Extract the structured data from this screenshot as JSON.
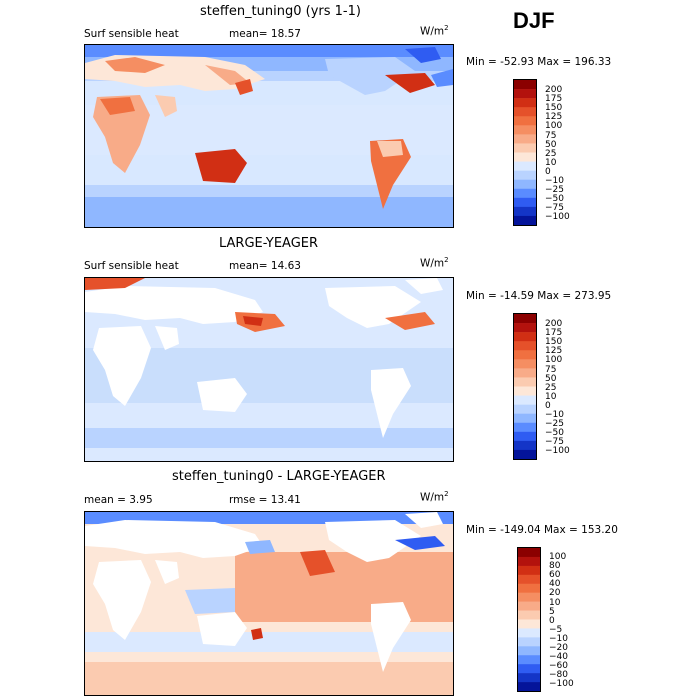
{
  "season": "DJF",
  "panels": [
    {
      "title": "steffen_tuning0 (yrs 1-1)",
      "left_text": "Surf sensible heat",
      "stat_text": "mean=  18.57",
      "units": "W/m",
      "minmax": "Min = -52.93 Max = 196.33",
      "colorbar_labels": [
        "200",
        "175",
        "150",
        "125",
        "100",
        "75",
        "50",
        "25",
        "10",
        "0",
        "−10",
        "−25",
        "−50",
        "−75",
        "−100"
      ],
      "colorbar_colors": [
        "#8b0000",
        "#b3120d",
        "#d12f14",
        "#e5512a",
        "#f07040",
        "#f58e62",
        "#f8ab88",
        "#fbcbb0",
        "#fde7d8",
        "#dbe9ff",
        "#b9d3ff",
        "#8fb7ff",
        "#5a8cff",
        "#2f5cf2",
        "#1435c7",
        "#04149a"
      ]
    },
    {
      "title": "LARGE-YEAGER",
      "left_text": "Surf sensible heat",
      "stat_text": "mean=  14.63",
      "units": "W/m",
      "minmax": "Min = -14.59 Max = 273.95",
      "colorbar_labels": [
        "200",
        "175",
        "150",
        "125",
        "100",
        "75",
        "50",
        "25",
        "10",
        "0",
        "−10",
        "−25",
        "−50",
        "−75",
        "−100"
      ],
      "colorbar_colors": [
        "#8b0000",
        "#b3120d",
        "#d12f14",
        "#e5512a",
        "#f07040",
        "#f58e62",
        "#f8ab88",
        "#fbcbb0",
        "#fde7d8",
        "#dbe9ff",
        "#b9d3ff",
        "#8fb7ff",
        "#5a8cff",
        "#2f5cf2",
        "#1435c7",
        "#04149a"
      ]
    },
    {
      "title": "steffen_tuning0 - LARGE-YEAGER",
      "left_text": "mean =   3.95",
      "stat_text": "rmse =  13.41",
      "units": "W/m",
      "minmax": "Min = -149.04 Max = 153.20",
      "colorbar_labels": [
        "100",
        "80",
        "60",
        "40",
        "20",
        "10",
        "5",
        "0",
        "−5",
        "−10",
        "−20",
        "−40",
        "−60",
        "−80",
        "−100"
      ],
      "colorbar_colors": [
        "#8b0000",
        "#b3120d",
        "#d12f14",
        "#e5512a",
        "#f07040",
        "#f58e62",
        "#f8ab88",
        "#fbcbb0",
        "#fde7d8",
        "#dbe9ff",
        "#b9d3ff",
        "#8fb7ff",
        "#5a8cff",
        "#2f5cf2",
        "#1435c7",
        "#04149a"
      ]
    }
  ],
  "units_sup": "2"
}
